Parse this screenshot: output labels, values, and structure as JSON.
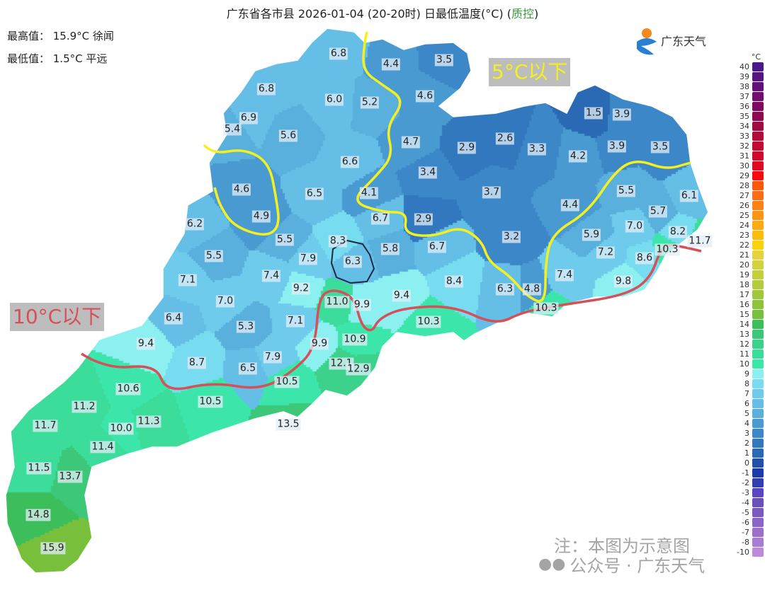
{
  "title": {
    "main": "广东省各市县 2026-01-04 (20-20时) 日最低温度(°C) (",
    "qc": "质控",
    "close": ")"
  },
  "stats": {
    "max": "最高值： 15.9°C 徐闻",
    "min": "最低值： 1.5°C 平远"
  },
  "logo": {
    "text": "广东天气"
  },
  "annotations": {
    "below5": "5°C以下",
    "below10": "10°C以下",
    "line5_color": "#f4f020",
    "line10_color": "#d6505a"
  },
  "legend": {
    "unit": "°C",
    "items": [
      {
        "v": "40",
        "c": "#4a1a8a"
      },
      {
        "v": "39",
        "c": "#571582"
      },
      {
        "v": "38",
        "c": "#64107a"
      },
      {
        "v": "37",
        "c": "#720c6e"
      },
      {
        "v": "36",
        "c": "#800a60"
      },
      {
        "v": "35",
        "c": "#8e0850"
      },
      {
        "v": "34",
        "c": "#a00a44"
      },
      {
        "v": "33",
        "c": "#b40a3a"
      },
      {
        "v": "32",
        "c": "#c40a32"
      },
      {
        "v": "31",
        "c": "#d00a2a"
      },
      {
        "v": "30",
        "c": "#e00a20"
      },
      {
        "v": "29",
        "c": "#fa0a0a"
      },
      {
        "v": "28",
        "c": "#fa5a0a"
      },
      {
        "v": "27",
        "c": "#fa6e14"
      },
      {
        "v": "26",
        "c": "#fa8214"
      },
      {
        "v": "25",
        "c": "#fa9614"
      },
      {
        "v": "24",
        "c": "#faaa14"
      },
      {
        "v": "23",
        "c": "#fabe0a"
      },
      {
        "v": "22",
        "c": "#fad20a"
      },
      {
        "v": "21",
        "c": "#e6d23c"
      },
      {
        "v": "20",
        "c": "#d2d23c"
      },
      {
        "v": "19",
        "c": "#c3d03c"
      },
      {
        "v": "18",
        "c": "#b4cc3c"
      },
      {
        "v": "17",
        "c": "#a0c83c"
      },
      {
        "v": "16",
        "c": "#8cc43c"
      },
      {
        "v": "15",
        "c": "#78c03c"
      },
      {
        "v": "14",
        "c": "#3cbe5a"
      },
      {
        "v": "13",
        "c": "#3cc878"
      },
      {
        "v": "12",
        "c": "#3cd28c"
      },
      {
        "v": "11",
        "c": "#3cdc9b"
      },
      {
        "v": "10",
        "c": "#3ce6aa"
      },
      {
        "v": "9",
        "c": "#8cf0f0"
      },
      {
        "v": "8",
        "c": "#78dcf0"
      },
      {
        "v": "7",
        "c": "#6ecbeb"
      },
      {
        "v": "6",
        "c": "#64bee6"
      },
      {
        "v": "5",
        "c": "#5ab0dc"
      },
      {
        "v": "4",
        "c": "#4a9ad2"
      },
      {
        "v": "3",
        "c": "#3c87c8"
      },
      {
        "v": "2",
        "c": "#3278be"
      },
      {
        "v": "1",
        "c": "#2a6ab4"
      },
      {
        "v": "0",
        "c": "#2050a8"
      },
      {
        "v": "-1",
        "c": "#1a3caa"
      },
      {
        "v": "-2",
        "c": "#3040b0"
      },
      {
        "v": "-3",
        "c": "#5a46c0"
      },
      {
        "v": "-4",
        "c": "#6a50b8"
      },
      {
        "v": "-5",
        "c": "#7a5ac0"
      },
      {
        "v": "-6",
        "c": "#8a64c8"
      },
      {
        "v": "-7",
        "c": "#9a70cc"
      },
      {
        "v": "-8",
        "c": "#a87cd2"
      },
      {
        "v": "-10",
        "c": "#bc8cd8"
      }
    ]
  },
  "stations": [
    "6.8",
    "4.4",
    "3.5",
    "6.8",
    "6.0",
    "5.2",
    "4.6",
    "1.5",
    "3.9",
    "6.9",
    "5.4",
    "5.6",
    "4.7",
    "2.9",
    "2.6",
    "3.3",
    "4.2",
    "3.9",
    "3.5",
    "6.6",
    "4.6",
    "3.4",
    "6.5",
    "4.1",
    "3.7",
    "4.4",
    "5.5",
    "6.1",
    "4.9",
    "6.2",
    "6.7",
    "2.9",
    "5.7",
    "7.0",
    "8.2",
    "11.7",
    "5.5",
    "8.3",
    "3.2",
    "5.9",
    "10.3",
    "6.7",
    "5.8",
    "5.5",
    "7.9",
    "6.3",
    "7.2",
    "8.6",
    "7.1",
    "7.4",
    "8.4",
    "7.4",
    "9.8",
    "9.2",
    "9.4",
    "6.3",
    "4.8",
    "7.0",
    "11.0",
    "9.9",
    "10.3",
    "6.4",
    "7.1",
    "5.3",
    "10.3",
    "9.4",
    "9.9",
    "10.9",
    "8.7",
    "7.9",
    "12.1",
    "12.9",
    "6.5",
    "10.5",
    "10.6",
    "10.5",
    "11.2",
    "13.5",
    "11.7",
    "10.0",
    "11.3",
    "11.4",
    "11.5",
    "13.7",
    "14.8",
    "15.9"
  ],
  "watermark": {
    "note": "注：本图为示意图",
    "account": "公众号 · 广东天气"
  }
}
